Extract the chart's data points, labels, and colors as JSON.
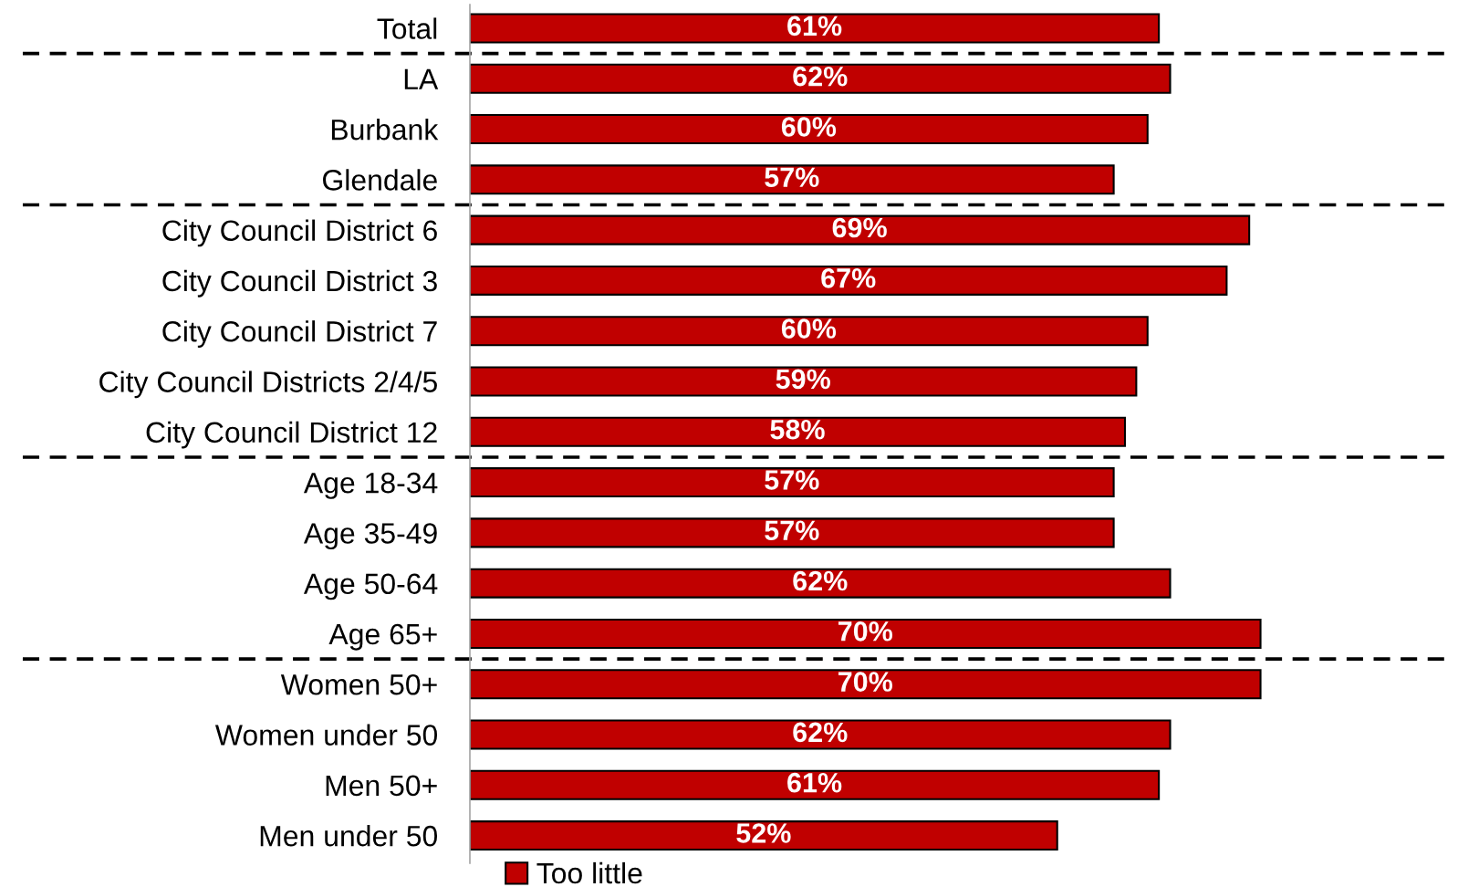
{
  "chart_data": {
    "type": "bar",
    "orientation": "horizontal",
    "categories": [
      "Total",
      "LA",
      "Burbank",
      "Glendale",
      "City Council District 6",
      "City Council District 3",
      "City Council District 7",
      "City Council Districts 2/4/5",
      "City Council District 12",
      "Age 18-34",
      "Age 35-49",
      "Age 50-64",
      "Age 65+",
      "Women 50+",
      "Women under 50",
      "Men 50+",
      "Men under 50"
    ],
    "series": [
      {
        "name": "Too little",
        "color": "#c00000",
        "values": [
          61,
          62,
          60,
          57,
          69,
          67,
          60,
          59,
          58,
          57,
          57,
          62,
          70,
          70,
          62,
          61,
          52
        ],
        "value_labels": [
          "61%",
          "62%",
          "60%",
          "57%",
          "69%",
          "67%",
          "60%",
          "59%",
          "58%",
          "57%",
          "57%",
          "62%",
          "70%",
          "70%",
          "62%",
          "61%",
          "52%"
        ]
      }
    ],
    "xlim": [
      0,
      87
    ],
    "tick_labels": "y",
    "legend": "bottom"
  }
}
